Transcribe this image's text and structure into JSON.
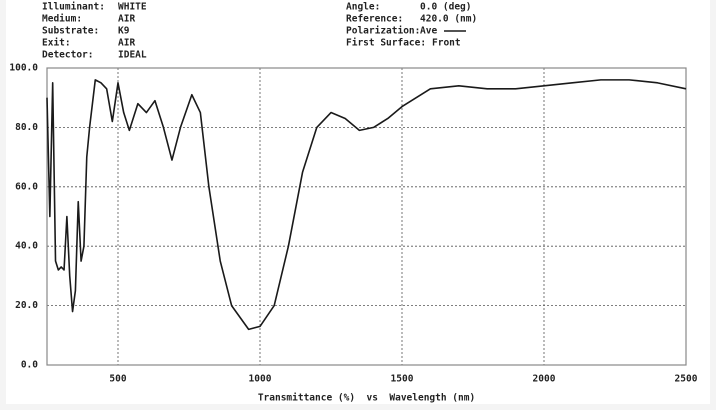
{
  "chart_data": {
    "type": "line",
    "info_left": [
      {
        "label": "Illuminant:",
        "value": "WHITE"
      },
      {
        "label": "Medium:",
        "value": "AIR"
      },
      {
        "label": "Substrate:",
        "value": "K9"
      },
      {
        "label": "Exit:",
        "value": "AIR"
      },
      {
        "label": "Detector:",
        "value": "IDEAL"
      }
    ],
    "info_right": [
      {
        "label": "Angle:",
        "value": "0.0 (deg)"
      },
      {
        "label": "Reference:",
        "value": "420.0 (nm)"
      },
      {
        "label": "Polarization:",
        "value": "Ave"
      },
      {
        "label": "First Surface:",
        "value": "Front"
      }
    ],
    "xlabel": "Transmittance (%)  vs  Wavelength (nm)",
    "x": [
      250,
      260,
      270,
      280,
      290,
      300,
      310,
      320,
      330,
      340,
      350,
      360,
      370,
      380,
      390,
      400,
      420,
      440,
      460,
      480,
      500,
      520,
      540,
      570,
      600,
      630,
      660,
      690,
      720,
      760,
      790,
      820,
      860,
      900,
      960,
      1000,
      1050,
      1100,
      1150,
      1200,
      1250,
      1300,
      1350,
      1400,
      1450,
      1500,
      1600,
      1700,
      1800,
      1900,
      2000,
      2100,
      2200,
      2300,
      2400,
      2500
    ],
    "series": [
      {
        "name": "Ave",
        "color": "#1a1a1a",
        "values": [
          90,
          50,
          95,
          35,
          32,
          33,
          32,
          50,
          30,
          18,
          25,
          55,
          35,
          40,
          70,
          80,
          96,
          95,
          93,
          82,
          95,
          85,
          79,
          88,
          85,
          89,
          80,
          69,
          80,
          91,
          85,
          60,
          35,
          20,
          12,
          13,
          20,
          40,
          65,
          80,
          85,
          83,
          79,
          80,
          83,
          87,
          93,
          94,
          93,
          93,
          94,
          95,
          96,
          96,
          95,
          93
        ]
      }
    ],
    "xlim": [
      250,
      2500
    ],
    "xticks": [
      500,
      1000,
      1500,
      2000,
      2500
    ],
    "ylim": [
      0,
      100
    ],
    "yticks": [
      {
        "value": 0,
        "label": "0.0"
      },
      {
        "value": 20,
        "label": "20.0"
      },
      {
        "value": 40,
        "label": "40.0"
      },
      {
        "value": 60,
        "label": "60.0"
      },
      {
        "value": 80,
        "label": "80.0"
      },
      {
        "value": 100,
        "label": "100.0"
      }
    ],
    "grid": true
  }
}
